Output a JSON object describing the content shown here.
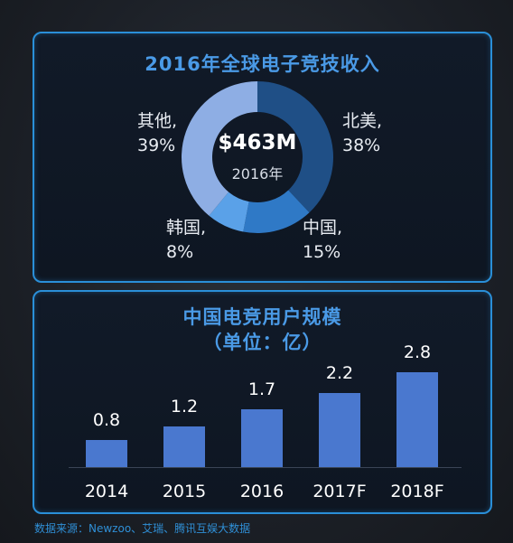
{
  "source": "数据来源：Newzoo、艾瑞、腾讯互娱大数据",
  "chart_data": [
    {
      "type": "pie",
      "title": "2016年全球电子竞技收入",
      "center_value": "$463M",
      "center_sub": "2016年",
      "slices": [
        {
          "name": "北美,",
          "pct_label": "38%",
          "value": 38,
          "color": "#1f4f86"
        },
        {
          "name": "中国,",
          "pct_label": "15%",
          "value": 15,
          "color": "#2f79c6"
        },
        {
          "name": "韩国,",
          "pct_label": "8%",
          "value": 8,
          "color": "#5aa1e8"
        },
        {
          "name": "其他,",
          "pct_label": "39%",
          "value": 39,
          "color": "#8eaee4"
        }
      ]
    },
    {
      "type": "bar",
      "title": "中国电竞用户规模",
      "subtitle": "（单位：亿）",
      "categories": [
        "2014",
        "2015",
        "2016",
        "2017F",
        "2018F"
      ],
      "values": [
        0.8,
        1.2,
        1.7,
        2.2,
        2.8
      ],
      "value_labels": [
        "0.8",
        "1.2",
        "1.7",
        "2.2",
        "2.8"
      ],
      "bar_color": "#4a78cf",
      "ylim": [
        0,
        2.8
      ]
    }
  ]
}
